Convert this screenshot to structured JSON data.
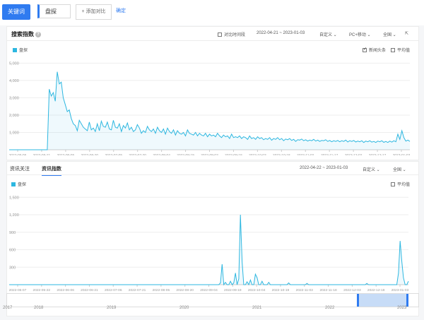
{
  "topbar": {
    "keyword_tab": "关键词",
    "keyword": "盘探",
    "add_compare": "+ 添加对比",
    "confirm": "确定"
  },
  "search_index": {
    "title": "搜索指数",
    "compare_time": "对比时间段",
    "date_range": "2022-04-21 ~ 2023-01-03",
    "custom": "自定义",
    "device": "PC+移动",
    "region": "全国",
    "legend": "盘探",
    "news_headline": "新闻头条",
    "average": "平均值"
  },
  "news_index": {
    "tab_info_attention": "资讯关注",
    "tab_info_index": "资讯指数",
    "date_range": "2022-04-22 ~ 2023-01-03",
    "custom": "自定义",
    "region": "全国",
    "legend": "盘探",
    "average": "平均值"
  },
  "timeline": {
    "years": [
      "2017",
      "2018",
      "2019",
      "2020",
      "2021",
      "2022",
      "2023"
    ]
  },
  "colors": {
    "accent": "#2f7bf0",
    "series": "#2db7e0"
  },
  "chart_data": [
    {
      "type": "area",
      "series_name": "盘探",
      "y_ticks": [
        "1,000",
        "2,000",
        "3,000",
        "4,000",
        "5,000"
      ],
      "ylim": [
        0,
        5300
      ],
      "x_ticks": [
        "2022-05-06",
        "2022-05-21",
        "2022-06-05",
        "2022-06-20",
        "2022-07-05",
        "2022-07-20",
        "2022-08-04",
        "2022-08-19",
        "2022-09-03",
        "2022-09-18",
        "2022-10-03",
        "2022-10-18",
        "2022-11-02",
        "2022-11-17",
        "2022-12-02",
        "2022-12-17",
        "2023-01-03"
      ],
      "values": [
        0,
        0,
        0,
        0,
        0,
        0,
        0,
        0,
        0,
        0,
        0,
        0,
        0,
        0,
        0,
        0,
        0,
        0,
        0,
        0,
        3500,
        3100,
        3300,
        2800,
        4500,
        3800,
        3900,
        3000,
        2600,
        2200,
        2300,
        1800,
        1500,
        1400,
        1100,
        1700,
        1500,
        1300,
        1200,
        1100,
        1600,
        1150,
        1250,
        1050,
        1500,
        1100,
        1650,
        1350,
        1300,
        1600,
        1200,
        1150,
        1700,
        1300,
        1250,
        1500,
        1050,
        1400,
        1250,
        1550,
        1150,
        1300,
        1050,
        1150,
        1450,
        1250,
        950,
        1100,
        1000,
        1350,
        1150,
        1050,
        1200,
        950,
        1300,
        1100,
        1000,
        1200,
        900,
        1250,
        1050,
        950,
        1150,
        850,
        1100,
        950,
        900,
        1000,
        800,
        1150,
        950,
        900,
        850,
        1000,
        800,
        950,
        850,
        800,
        950,
        750,
        900,
        800,
        850,
        750,
        950,
        800,
        700,
        850,
        750,
        800,
        650,
        900,
        700,
        750,
        700,
        800,
        650,
        750,
        700,
        600,
        800,
        650,
        700,
        600,
        750,
        650,
        700,
        580,
        650,
        600,
        700,
        550,
        650,
        600,
        700,
        580,
        650,
        520,
        620,
        580,
        650,
        540,
        600,
        480,
        580,
        560,
        620,
        520,
        580,
        500,
        560,
        520,
        600,
        500,
        560,
        480,
        540,
        520,
        580,
        480,
        540,
        460,
        520,
        480,
        540,
        460,
        520,
        480,
        560,
        450,
        520,
        480,
        540,
        450,
        500,
        460,
        520,
        420,
        500,
        460,
        520,
        440,
        480,
        420,
        500,
        460,
        520,
        430,
        480,
        420,
        500,
        440,
        520,
        460,
        900,
        600,
        1100,
        700,
        500,
        560,
        480
      ]
    },
    {
      "type": "area",
      "series_name": "盘探",
      "y_ticks": [
        "300",
        "600",
        "900",
        "1,200",
        "1,500"
      ],
      "ylim": [
        0,
        1600
      ],
      "x_ticks": [
        "2022-05-07",
        "2022-05-22",
        "2022-06-06",
        "2022-06-21",
        "2022-07-06",
        "2022-07-21",
        "2022-08-05",
        "2022-08-20",
        "2022-09-04",
        "2022-09-19",
        "2022-10-04",
        "2022-10-19",
        "2022-11-03",
        "2022-11-18",
        "2022-12-03",
        "2022-12-18",
        "2023-01-03"
      ],
      "values": [
        0,
        0,
        0,
        0,
        0,
        0,
        0,
        0,
        0,
        0,
        0,
        0,
        0,
        0,
        0,
        0,
        0,
        0,
        0,
        0,
        0,
        0,
        0,
        0,
        0,
        0,
        0,
        0,
        0,
        0,
        0,
        0,
        0,
        0,
        0,
        0,
        0,
        0,
        0,
        0,
        0,
        0,
        0,
        0,
        0,
        0,
        0,
        0,
        0,
        0,
        0,
        0,
        0,
        0,
        0,
        0,
        0,
        0,
        0,
        0,
        0,
        0,
        0,
        0,
        0,
        0,
        0,
        0,
        0,
        0,
        0,
        0,
        0,
        0,
        0,
        0,
        0,
        0,
        0,
        0,
        0,
        0,
        0,
        0,
        0,
        0,
        0,
        0,
        0,
        0,
        0,
        0,
        0,
        0,
        0,
        0,
        0,
        0,
        0,
        0,
        0,
        0,
        0,
        0,
        0,
        0,
        0,
        0,
        0,
        0,
        0,
        0,
        0,
        0,
        0,
        0,
        0,
        0,
        0,
        0,
        0,
        0,
        0,
        0,
        0,
        0,
        0,
        30,
        350,
        0,
        40,
        0,
        0,
        60,
        0,
        30,
        200,
        0,
        100,
        1200,
        400,
        0,
        0,
        50,
        0,
        80,
        0,
        0,
        180,
        120,
        0,
        0,
        60,
        0,
        0,
        0,
        40,
        0,
        0,
        0,
        0,
        0,
        0,
        0,
        0,
        0,
        0,
        0,
        30,
        0,
        0,
        0,
        0,
        0,
        0,
        0,
        0,
        0,
        0,
        20,
        0,
        0,
        0,
        0,
        0,
        0,
        0,
        0,
        0,
        0,
        0,
        0,
        0,
        0,
        0,
        0,
        0,
        0,
        0,
        0,
        0,
        0,
        0,
        0,
        0,
        0,
        0,
        0,
        0,
        0,
        0,
        0,
        0,
        0,
        0,
        20,
        0,
        0,
        0,
        0,
        0,
        0,
        0,
        0,
        0,
        0,
        0,
        0,
        0,
        0,
        0,
        0,
        0,
        0,
        200,
        750,
        400,
        120,
        0,
        0,
        60
      ]
    }
  ]
}
